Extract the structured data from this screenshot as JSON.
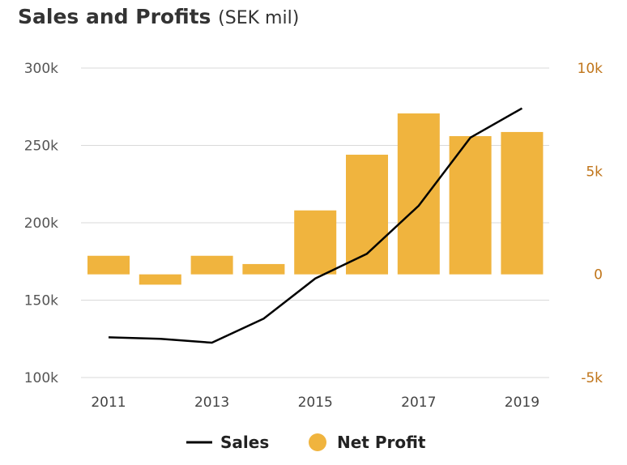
{
  "chart_data": {
    "type": "bar",
    "title": "Sales and Profits",
    "subtitle": "(SEK mil)",
    "x": [
      2011,
      2012,
      2013,
      2014,
      2015,
      2016,
      2017,
      2018,
      2019
    ],
    "x_tick_labels": [
      "2011",
      "2013",
      "2015",
      "2017",
      "2019"
    ],
    "y_left": {
      "range": [
        100000,
        300000
      ],
      "ticks": [
        100000,
        150000,
        200000,
        250000,
        300000
      ],
      "tick_labels": [
        "100k",
        "150k",
        "200k",
        "250k",
        "300k"
      ]
    },
    "y_right": {
      "range": [
        -5000,
        10000
      ],
      "ticks": [
        -5000,
        0,
        5000,
        10000
      ],
      "tick_labels": [
        "-5k",
        "0",
        "5k",
        "10k"
      ]
    },
    "grid": true,
    "legend_position": "bottom-center",
    "series": [
      {
        "name": "Sales",
        "type": "line",
        "axis": "left",
        "color": "#000000",
        "values": [
          126000,
          125000,
          122500,
          138000,
          164000,
          180000,
          211000,
          255000,
          274000
        ]
      },
      {
        "name": "Net Profit",
        "type": "bar",
        "axis": "right",
        "color": "#f0b43e",
        "values": [
          900,
          -500,
          900,
          500,
          3100,
          5800,
          7800,
          6700,
          6900
        ]
      }
    ]
  }
}
